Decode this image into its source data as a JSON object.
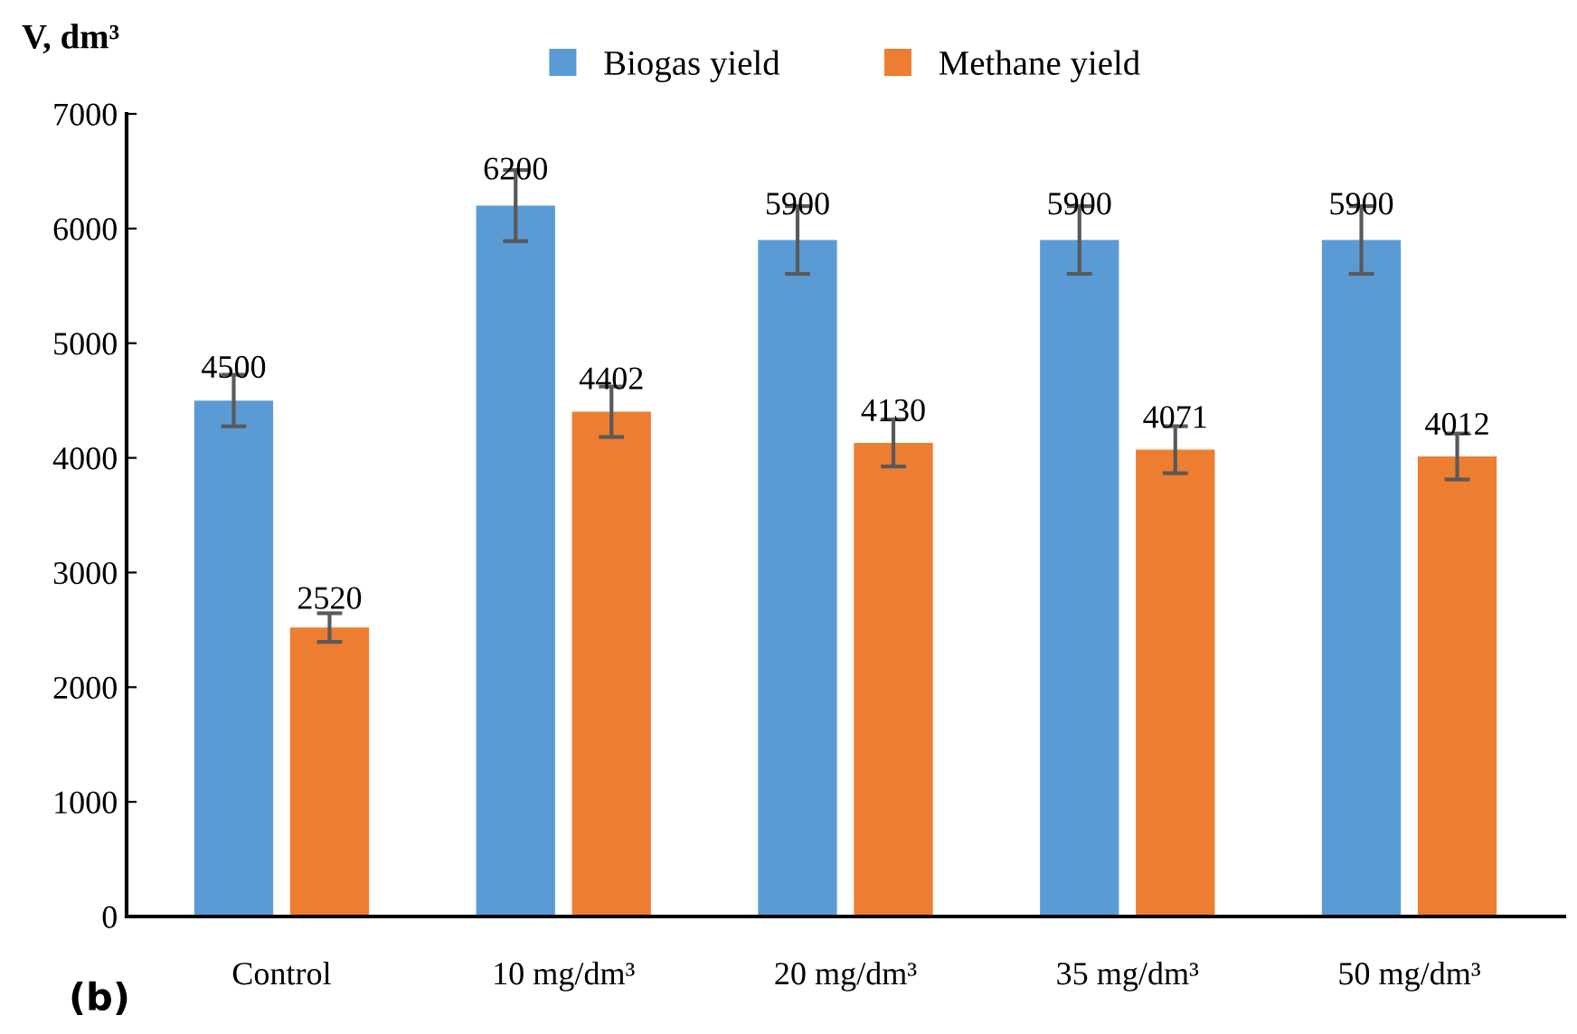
{
  "chart_data": {
    "type": "bar",
    "ylabel": "V, dm³",
    "categories": [
      "Control",
      "10 mg/dm³",
      "20 mg/dm³",
      "35 mg/dm³",
      "50 mg/dm³"
    ],
    "series": [
      {
        "name": "Biogas yield",
        "color": "#5b9bd5",
        "values": [
          4500,
          6200,
          5900,
          5900,
          5900
        ],
        "errors": [
          225,
          310,
          295,
          295,
          295
        ]
      },
      {
        "name": "Methane yield",
        "color": "#ed7d31",
        "values": [
          2520,
          4402,
          4130,
          4071,
          4012
        ],
        "errors": [
          125,
          220,
          205,
          205,
          200
        ]
      }
    ],
    "ylim": [
      0,
      7000
    ],
    "yticks": [
      0,
      1000,
      2000,
      3000,
      4000,
      5000,
      6000,
      7000
    ],
    "data_labels": true,
    "grid": false,
    "legend": "top",
    "annotations": [
      "(b)"
    ]
  }
}
